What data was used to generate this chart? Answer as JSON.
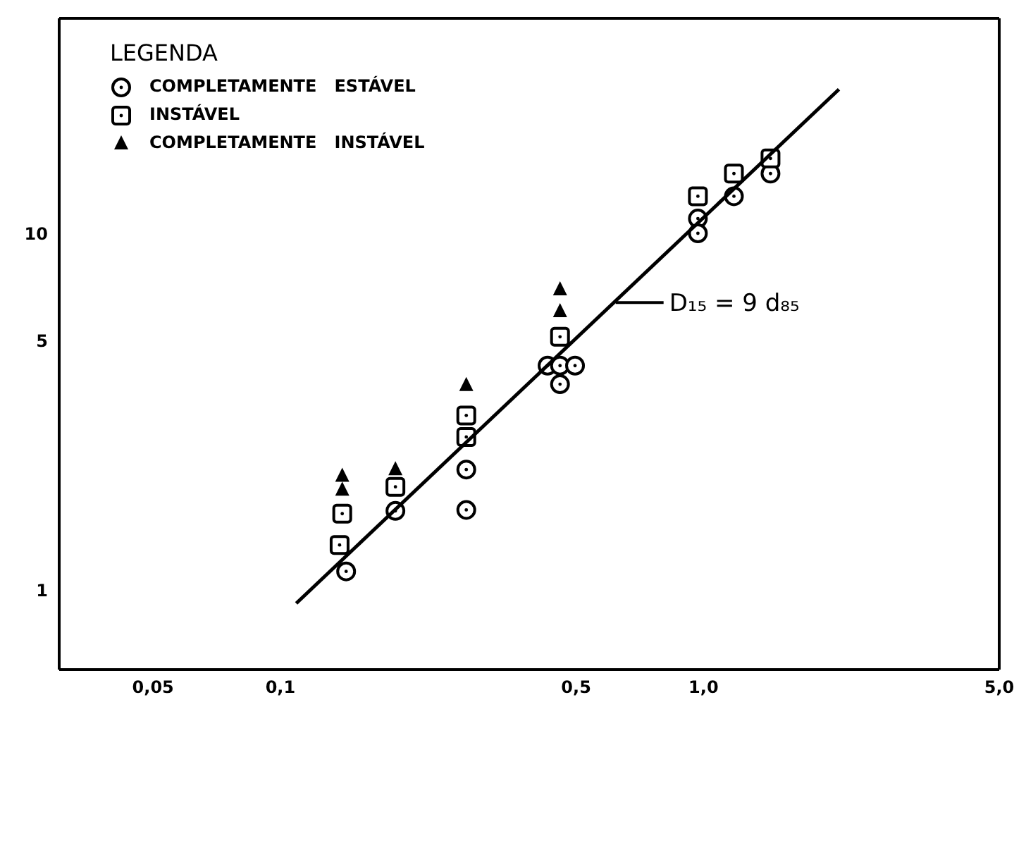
{
  "chart_data": {
    "type": "scatter",
    "legend_title": "LEGENDA",
    "legend": "top left",
    "log": "xy",
    "grid": false,
    "xlim": [
      0.03,
      5
    ],
    "ylim": [
      0.6,
      40
    ],
    "xticks": [
      {
        "value": 0.05,
        "label": "0,05"
      },
      {
        "value": 0.1,
        "label": "0,1"
      },
      {
        "value": 0.5,
        "label": "0,5"
      },
      {
        "value": 1,
        "label": "1,0"
      },
      {
        "value": 5,
        "label": "5,0"
      }
    ],
    "yticks": [
      1,
      5,
      10
    ],
    "annotations": [
      {
        "text": "D₁₅ = 9 d₈₅",
        "x": 0.62,
        "y": 6.4
      }
    ],
    "series": [
      {
        "name": "COMPLETAMENTE   ESTÁVEL",
        "marker": "circle",
        "color": "#000000",
        "x": [
          0.143,
          0.187,
          0.275,
          0.275,
          0.428,
          0.458,
          0.497,
          0.458,
          0.97,
          0.97,
          1.18,
          1.44
        ],
        "values": [
          1.13,
          1.67,
          2.18,
          1.68,
          4.26,
          4.26,
          4.26,
          3.78,
          11.0,
          10.0,
          12.7,
          14.7
        ]
      },
      {
        "name": "INSTÁVEL",
        "marker": "square",
        "color": "#000000",
        "x": [
          0.14,
          0.138,
          0.187,
          0.275,
          0.275,
          0.458,
          0.97,
          1.18,
          1.44
        ],
        "values": [
          1.64,
          1.34,
          1.95,
          3.09,
          2.69,
          5.13,
          12.7,
          14.7,
          16.2
        ]
      },
      {
        "name": "COMPLETAMENTE   INSTÁVEL",
        "marker": "triangle",
        "color": "#000000",
        "x": [
          0.14,
          0.14,
          0.187,
          0.275,
          0.458,
          0.458
        ],
        "values": [
          2.09,
          1.91,
          2.18,
          3.75,
          6.95,
          6.04
        ]
      },
      {
        "type": "line",
        "marker": "none",
        "line_style": "solid",
        "color": "#000000",
        "x": [
          0.109,
          2.09
        ],
        "values": [
          0.92,
          25.3
        ]
      }
    ]
  }
}
